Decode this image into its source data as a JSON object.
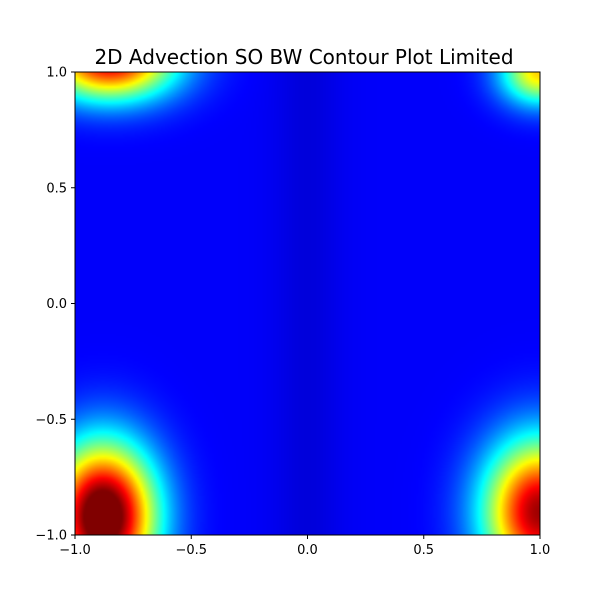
{
  "chart_data": {
    "type": "heatmap",
    "title": "2D Advection SO BW Contour Plot Limited",
    "xlabel": "",
    "ylabel": "",
    "xlim": [
      -1.0,
      1.0
    ],
    "ylim": [
      -1.0,
      1.0
    ],
    "x_ticks": [
      "−1.0",
      "−0.5",
      "0.0",
      "0.5",
      "1.0"
    ],
    "y_ticks": [
      "1.0",
      "0.5",
      "0.0",
      "−0.5",
      "−1.0"
    ],
    "x_tick_values": [
      -1.0,
      -0.5,
      0.0,
      0.5,
      1.0
    ],
    "y_tick_values": [
      1.0,
      0.5,
      0.0,
      -0.5,
      -1.0
    ],
    "colormap": "jet",
    "value_range": [
      0,
      1
    ],
    "background_level": 0.12,
    "hotspots": [
      {
        "x": -0.88,
        "y": -0.92,
        "amplitude": 1.0,
        "sx": 0.16,
        "sy": 0.22
      },
      {
        "x": 1.0,
        "y": -0.9,
        "amplitude": 0.85,
        "sx": 0.17,
        "sy": 0.22
      },
      {
        "x": -0.85,
        "y": 1.05,
        "amplitude": 0.8,
        "sx": 0.2,
        "sy": 0.12
      },
      {
        "x": 1.0,
        "y": 1.0,
        "amplitude": 0.55,
        "sx": 0.12,
        "sy": 0.1
      }
    ],
    "grid": false,
    "legend": "none"
  }
}
